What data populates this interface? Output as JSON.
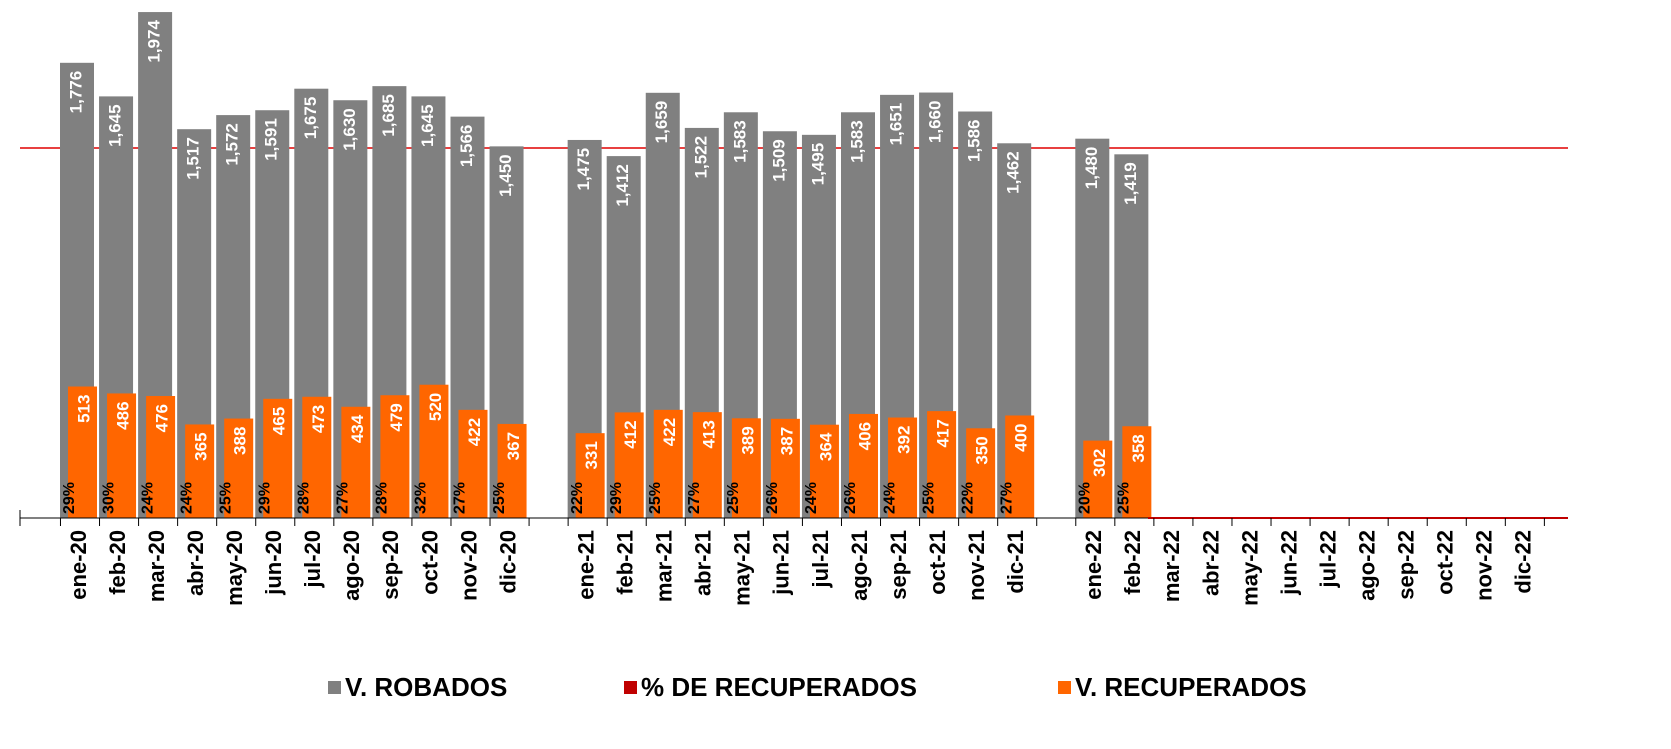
{
  "chart_data": {
    "type": "bar",
    "categories": [
      "ene-20",
      "feb-20",
      "mar-20",
      "abr-20",
      "may-20",
      "jun-20",
      "jul-20",
      "ago-20",
      "sep-20",
      "oct-20",
      "nov-20",
      "dic-20",
      null,
      "ene-21",
      "feb-21",
      "mar-21",
      "abr-21",
      "may-21",
      "jun-21",
      "jul-21",
      "ago-21",
      "sep-21",
      "oct-21",
      "nov-21",
      "dic-21",
      null,
      "ene-22",
      "feb-22",
      "mar-22",
      "abr-22",
      "may-22",
      "jun-22",
      "jul-22",
      "ago-22",
      "sep-22",
      "oct-22",
      "nov-22",
      "dic-22"
    ],
    "ylim": [
      0,
      2000
    ],
    "series": [
      {
        "name": "V. ROBADOS",
        "color": "#808080",
        "values": [
          1776,
          1645,
          1974,
          1517,
          1572,
          1591,
          1675,
          1630,
          1685,
          1645,
          1566,
          1450,
          null,
          1475,
          1412,
          1659,
          1522,
          1583,
          1509,
          1495,
          1583,
          1651,
          1660,
          1586,
          1462,
          null,
          1480,
          1419,
          null,
          null,
          null,
          null,
          null,
          null,
          null,
          null,
          null,
          null
        ],
        "value_labels": [
          "1,776",
          "1,645",
          "1,974",
          "1,517",
          "1,572",
          "1,591",
          "1,675",
          "1,630",
          "1,685",
          "1,645",
          "1,566",
          "1,450",
          null,
          "1,475",
          "1,412",
          "1,659",
          "1,522",
          "1,583",
          "1,509",
          "1,495",
          "1,583",
          "1,651",
          "1,660",
          "1,586",
          "1,462",
          null,
          "1,480",
          "1,419",
          null,
          null,
          null,
          null,
          null,
          null,
          null,
          null,
          null,
          null
        ]
      },
      {
        "name": "% DE RECUPERADOS",
        "color": "#c00000",
        "values": [
          29,
          30,
          24,
          24,
          25,
          29,
          28,
          27,
          28,
          32,
          27,
          25,
          null,
          22,
          29,
          25,
          27,
          25,
          26,
          24,
          26,
          24,
          25,
          22,
          27,
          null,
          20,
          25,
          null,
          null,
          null,
          null,
          null,
          null,
          null,
          null,
          null,
          null
        ],
        "value_labels": [
          "29%",
          "30%",
          "24%",
          "24%",
          "25%",
          "29%",
          "28%",
          "27%",
          "28%",
          "32%",
          "27%",
          "25%",
          null,
          "22%",
          "29%",
          "25%",
          "27%",
          "25%",
          "26%",
          "24%",
          "26%",
          "24%",
          "25%",
          "22%",
          "27%",
          null,
          "20%",
          "25%",
          null,
          null,
          null,
          null,
          null,
          null,
          null,
          null,
          null,
          null
        ]
      },
      {
        "name": "V. RECUPERADOS",
        "color": "#ff6600",
        "values": [
          513,
          486,
          476,
          365,
          388,
          465,
          473,
          434,
          479,
          520,
          422,
          367,
          null,
          331,
          412,
          422,
          413,
          389,
          387,
          364,
          406,
          392,
          417,
          350,
          400,
          null,
          302,
          358,
          null,
          null,
          null,
          null,
          null,
          null,
          null,
          null,
          null,
          null
        ]
      }
    ]
  }
}
